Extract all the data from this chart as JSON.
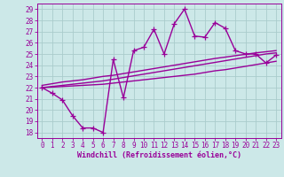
{
  "xlabel": "Windchill (Refroidissement éolien,°C)",
  "x_hours": [
    0,
    1,
    2,
    3,
    4,
    5,
    6,
    7,
    8,
    9,
    10,
    11,
    12,
    13,
    14,
    15,
    16,
    17,
    18,
    19,
    20,
    21,
    22,
    23
  ],
  "y_main": [
    22.0,
    21.5,
    20.9,
    19.5,
    18.4,
    18.4,
    18.0,
    24.5,
    21.1,
    25.3,
    25.6,
    27.2,
    25.0,
    27.7,
    29.0,
    26.6,
    26.5,
    27.8,
    27.3,
    25.3,
    25.0,
    25.0,
    24.2,
    24.9
  ],
  "y_smooth1": [
    22.0,
    22.05,
    22.1,
    22.15,
    22.2,
    22.25,
    22.3,
    22.4,
    22.5,
    22.6,
    22.7,
    22.8,
    22.9,
    23.0,
    23.1,
    23.2,
    23.35,
    23.5,
    23.6,
    23.75,
    23.9,
    24.05,
    24.2,
    24.35
  ],
  "y_smooth2": [
    22.0,
    22.1,
    22.2,
    22.3,
    22.4,
    22.5,
    22.6,
    22.75,
    22.9,
    23.05,
    23.2,
    23.35,
    23.5,
    23.65,
    23.8,
    23.95,
    24.1,
    24.25,
    24.4,
    24.55,
    24.7,
    24.85,
    25.0,
    25.1
  ],
  "y_smooth3": [
    22.2,
    22.35,
    22.5,
    22.6,
    22.7,
    22.85,
    23.0,
    23.1,
    23.25,
    23.4,
    23.55,
    23.7,
    23.85,
    24.0,
    24.15,
    24.3,
    24.45,
    24.6,
    24.72,
    24.85,
    24.97,
    25.1,
    25.2,
    25.3
  ],
  "line_color": "#990099",
  "bg_color": "#cce8e8",
  "grid_color": "#aacccc",
  "ylim": [
    17.5,
    29.5
  ],
  "xlim": [
    -0.5,
    23.5
  ],
  "yticks": [
    18,
    19,
    20,
    21,
    22,
    23,
    24,
    25,
    26,
    27,
    28,
    29
  ],
  "xticks": [
    0,
    1,
    2,
    3,
    4,
    5,
    6,
    7,
    8,
    9,
    10,
    11,
    12,
    13,
    14,
    15,
    16,
    17,
    18,
    19,
    20,
    21,
    22,
    23
  ],
  "marker": "+",
  "markersize": 4,
  "linewidth": 1.0,
  "tick_fontsize": 5.5,
  "xlabel_fontsize": 6.0
}
